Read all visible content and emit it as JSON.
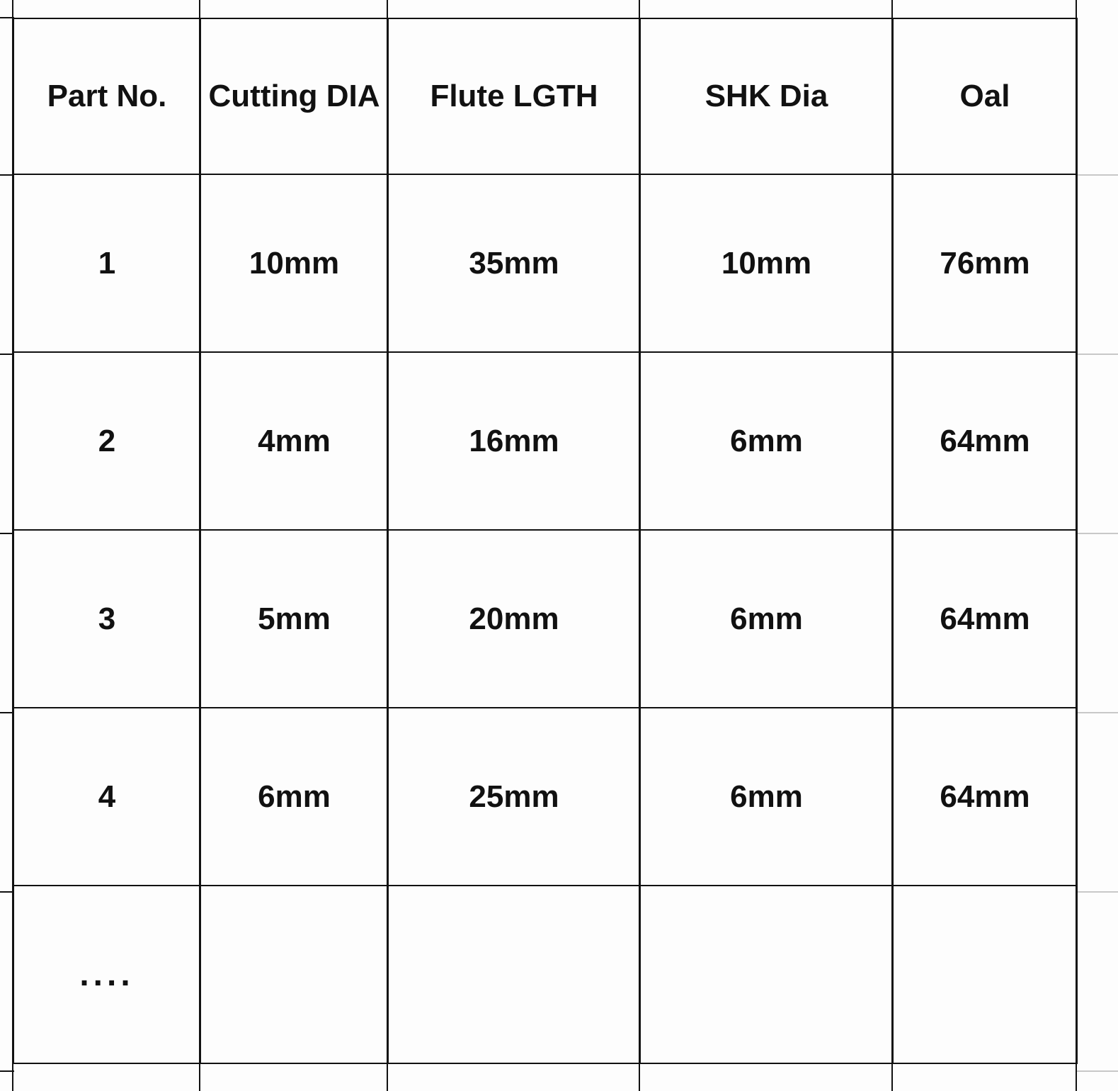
{
  "table": {
    "headers": [
      "Part No.",
      "Cutting DIA",
      "Flute LGTH",
      "SHK Dia",
      "Oal"
    ],
    "rows": [
      [
        "1",
        "10mm",
        "35mm",
        "10mm",
        "76mm"
      ],
      [
        "2",
        "4mm",
        "16mm",
        "6mm",
        "64mm"
      ],
      [
        "3",
        "5mm",
        "20mm",
        "6mm",
        "64mm"
      ],
      [
        "4",
        "6mm",
        "25mm",
        "6mm",
        "64mm"
      ],
      [
        "....",
        "",
        "",
        "",
        ""
      ]
    ]
  }
}
